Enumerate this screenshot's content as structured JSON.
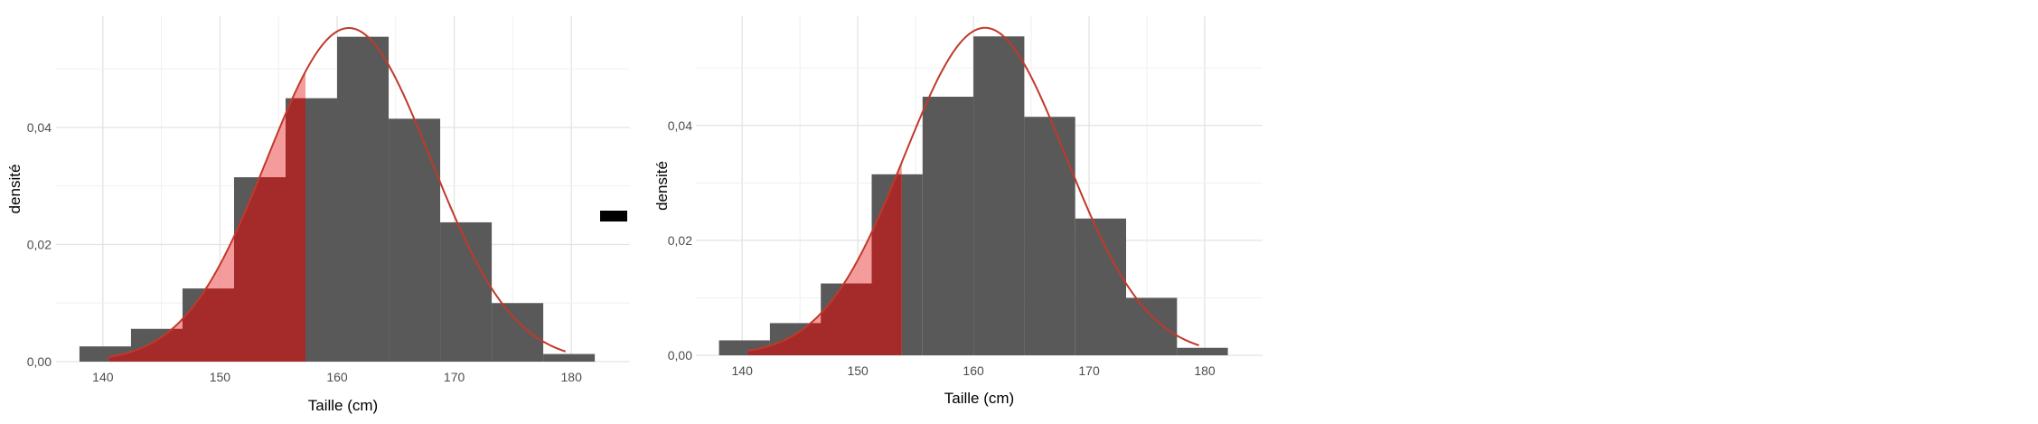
{
  "chart_data": [
    {
      "type": "bar",
      "subtype": "histogram-with-density-curve",
      "xlabel": "Taille (cm)",
      "ylabel": "densité",
      "xticks": [
        "140",
        "150",
        "160",
        "170",
        "180"
      ],
      "yticks": [
        "0,00",
        "0,02",
        "0,04"
      ],
      "xlim": [
        136,
        185
      ],
      "ylim": [
        0,
        0.059
      ],
      "bins": [
        {
          "x0": 138,
          "x1": 142.4,
          "value": 0.0026
        },
        {
          "x0": 142.4,
          "x1": 146.8,
          "value": 0.0056
        },
        {
          "x0": 146.8,
          "x1": 151.2,
          "value": 0.0125
        },
        {
          "x0": 151.2,
          "x1": 155.6,
          "value": 0.0315
        },
        {
          "x0": 155.6,
          "x1": 160.0,
          "value": 0.045
        },
        {
          "x0": 160.0,
          "x1": 164.4,
          "value": 0.0555
        },
        {
          "x0": 164.4,
          "x1": 168.8,
          "value": 0.0415
        },
        {
          "x0": 168.8,
          "x1": 173.2,
          "value": 0.0238
        },
        {
          "x0": 173.2,
          "x1": 177.6,
          "value": 0.01
        },
        {
          "x0": 177.6,
          "x1": 182.0,
          "value": 0.0013
        }
      ],
      "density_curve": {
        "mean": 161,
        "sd": 7,
        "x_range": [
          140.5,
          179.5
        ]
      },
      "shaded_cutoff": 157.3,
      "colors": {
        "bars": "#595959",
        "curve": "#c0392b",
        "shade_light": "#f28b8b",
        "shade_dark": "#a52a2a"
      },
      "legend_key_color": "#000000",
      "grid": true
    },
    {
      "type": "bar",
      "subtype": "histogram-with-density-curve",
      "xlabel": "Taille (cm)",
      "ylabel": "densité",
      "xticks": [
        "140",
        "150",
        "160",
        "170",
        "180"
      ],
      "yticks": [
        "0,00",
        "0,02",
        "0,04"
      ],
      "xlim": [
        136,
        185
      ],
      "ylim": [
        0,
        0.059
      ],
      "bins": [
        {
          "x0": 138,
          "x1": 142.4,
          "value": 0.0026
        },
        {
          "x0": 142.4,
          "x1": 146.8,
          "value": 0.0056
        },
        {
          "x0": 146.8,
          "x1": 151.2,
          "value": 0.0125
        },
        {
          "x0": 151.2,
          "x1": 155.6,
          "value": 0.0315
        },
        {
          "x0": 155.6,
          "x1": 160.0,
          "value": 0.045
        },
        {
          "x0": 160.0,
          "x1": 164.4,
          "value": 0.0555
        },
        {
          "x0": 164.4,
          "x1": 168.8,
          "value": 0.0415
        },
        {
          "x0": 168.8,
          "x1": 173.2,
          "value": 0.0238
        },
        {
          "x0": 173.2,
          "x1": 177.6,
          "value": 0.01
        },
        {
          "x0": 177.6,
          "x1": 182.0,
          "value": 0.0013
        }
      ],
      "density_curve": {
        "mean": 161,
        "sd": 7,
        "x_range": [
          140.5,
          179.5
        ]
      },
      "shaded_cutoff": 153.8,
      "colors": {
        "bars": "#595959",
        "curve": "#c0392b",
        "shade_light": "#f28b8b",
        "shade_dark": "#a52a2a"
      },
      "grid": true
    }
  ]
}
